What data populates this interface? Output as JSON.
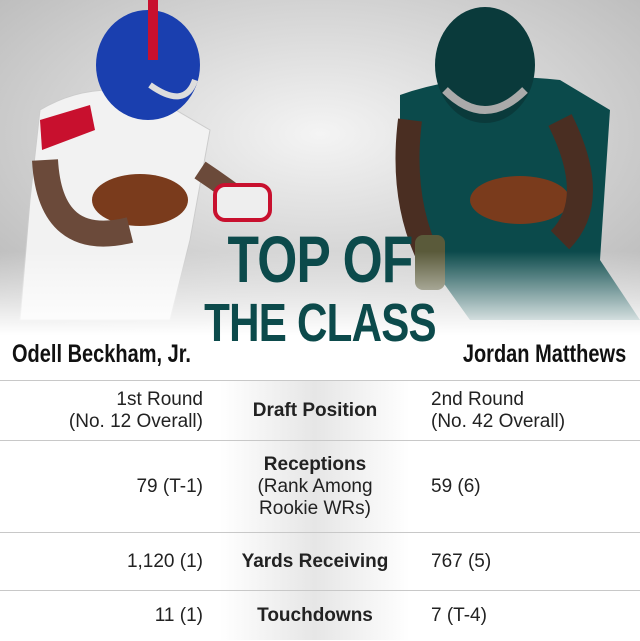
{
  "title": {
    "lines": [
      "TOP OF",
      "THE CLASS"
    ]
  },
  "players": [
    "Odell Beckham, Jr.",
    "Jordan Matthews"
  ],
  "rows": [
    {
      "label": [
        "Draft Position"
      ],
      "left": [
        "1st Round",
        "(No. 12 Overall)"
      ],
      "right": [
        "2nd Round",
        "(No. 42 Overall)"
      ]
    },
    {
      "label": [
        "Receptions",
        "(Rank Among",
        "Rookie WRs)"
      ],
      "left": [
        "79 (T-1)"
      ],
      "right": [
        "59 (6)"
      ]
    },
    {
      "label": [
        "Yards Receiving"
      ],
      "left": [
        "1,120 (1)"
      ],
      "right": [
        "767 (5)"
      ]
    },
    {
      "label": [
        "Touchdowns"
      ],
      "left": [
        "11 (1)"
      ],
      "right": [
        "7 (T-4)"
      ]
    }
  ]
}
